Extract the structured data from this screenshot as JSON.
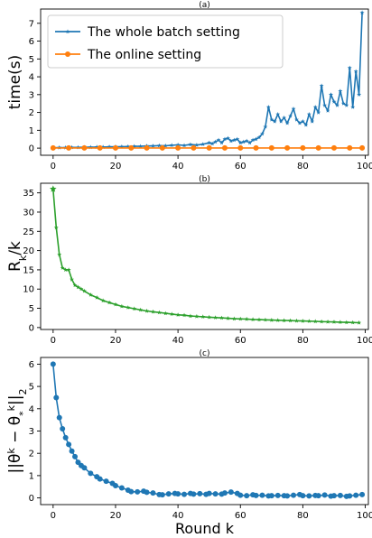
{
  "colors": {
    "blue": "#1f77b4",
    "orange": "#ff7f0e",
    "green": "#2ca02c"
  },
  "chart_data": [
    {
      "type": "line",
      "title": "(a)",
      "xlabel": "",
      "ylabel": "time(s)",
      "xlim": [
        -4,
        101
      ],
      "ylim": [
        -0.4,
        7.8
      ],
      "xticks": [
        0,
        20,
        40,
        60,
        80,
        100
      ],
      "yticks": [
        0,
        1,
        2,
        3,
        4,
        5,
        6,
        7
      ],
      "legend": "top-left",
      "series": [
        {
          "name": "The whole batch setting",
          "color": "#1f77b4",
          "marker": "star",
          "x": [
            0,
            2,
            4,
            6,
            8,
            10,
            12,
            14,
            16,
            18,
            20,
            22,
            24,
            26,
            28,
            30,
            32,
            34,
            36,
            38,
            40,
            42,
            44,
            46,
            48,
            50,
            51,
            52,
            53,
            54,
            55,
            56,
            57,
            58,
            59,
            60,
            61,
            62,
            63,
            64,
            65,
            66,
            67,
            68,
            69,
            70,
            71,
            72,
            73,
            74,
            75,
            76,
            77,
            78,
            79,
            80,
            81,
            82,
            83,
            84,
            85,
            86,
            87,
            88,
            89,
            90,
            91,
            92,
            93,
            94,
            95,
            96,
            97,
            98,
            99
          ],
          "y": [
            0.02,
            0.03,
            0.03,
            0.04,
            0.04,
            0.05,
            0.05,
            0.06,
            0.06,
            0.07,
            0.08,
            0.08,
            0.09,
            0.1,
            0.1,
            0.12,
            0.12,
            0.14,
            0.13,
            0.16,
            0.18,
            0.15,
            0.2,
            0.17,
            0.22,
            0.3,
            0.25,
            0.35,
            0.45,
            0.3,
            0.5,
            0.55,
            0.4,
            0.45,
            0.5,
            0.3,
            0.35,
            0.4,
            0.3,
            0.45,
            0.5,
            0.6,
            0.8,
            1.2,
            2.3,
            1.6,
            1.5,
            1.9,
            1.5,
            1.7,
            1.4,
            1.8,
            2.2,
            1.6,
            1.4,
            1.5,
            1.3,
            1.9,
            1.5,
            2.3,
            2.0,
            3.5,
            2.4,
            2.1,
            3.0,
            2.6,
            2.4,
            3.2,
            2.5,
            2.4,
            4.5,
            2.3,
            4.3,
            3.0,
            7.6
          ]
        },
        {
          "name": "The online setting",
          "color": "#ff7f0e",
          "marker": "circle",
          "x": [
            0,
            5,
            10,
            15,
            20,
            25,
            30,
            35,
            40,
            45,
            50,
            55,
            60,
            65,
            70,
            75,
            80,
            85,
            90,
            95,
            99
          ],
          "y": [
            0.01,
            0.01,
            0.01,
            0.01,
            0.01,
            0.01,
            0.01,
            0.01,
            0.01,
            0.01,
            0.01,
            0.01,
            0.01,
            0.01,
            0.01,
            0.01,
            0.01,
            0.01,
            0.01,
            0.01,
            0.01
          ]
        }
      ]
    },
    {
      "type": "line",
      "title": "(b)",
      "xlabel": "",
      "ylabel": "R_k/k",
      "xlim": [
        -4,
        101
      ],
      "ylim": [
        -0.5,
        37.5
      ],
      "xticks": [
        0,
        20,
        40,
        60,
        80,
        100
      ],
      "yticks": [
        0,
        5,
        10,
        15,
        20,
        25,
        30,
        35
      ],
      "series": [
        {
          "color": "#2ca02c",
          "marker": "star",
          "x": [
            0,
            1,
            2,
            3,
            4,
            5,
            6,
            7,
            8,
            9,
            10,
            12,
            14,
            16,
            18,
            20,
            22,
            24,
            26,
            28,
            30,
            32,
            34,
            36,
            38,
            40,
            42,
            44,
            46,
            48,
            50,
            52,
            54,
            56,
            58,
            60,
            62,
            64,
            66,
            68,
            70,
            72,
            74,
            76,
            78,
            80,
            82,
            84,
            86,
            88,
            90,
            92,
            94,
            96,
            98
          ],
          "y": [
            36,
            26,
            19,
            15.5,
            15,
            15,
            12.5,
            11,
            10.5,
            10,
            9.5,
            8.5,
            7.8,
            7,
            6.5,
            6,
            5.5,
            5.2,
            4.9,
            4.6,
            4.3,
            4.1,
            3.9,
            3.7,
            3.5,
            3.3,
            3.2,
            3.0,
            2.9,
            2.8,
            2.7,
            2.6,
            2.5,
            2.4,
            2.3,
            2.25,
            2.2,
            2.1,
            2.05,
            2.0,
            1.95,
            1.9,
            1.85,
            1.8,
            1.75,
            1.7,
            1.65,
            1.6,
            1.55,
            1.5,
            1.45,
            1.4,
            1.35,
            1.3,
            1.25
          ]
        }
      ]
    },
    {
      "type": "line",
      "title": "(c)",
      "xlabel": "Round k",
      "ylabel": "||θ^k − θ_*^k||_2",
      "xlim": [
        -4,
        101
      ],
      "ylim": [
        -0.3,
        6.3
      ],
      "xticks": [
        0,
        20,
        40,
        60,
        80,
        100
      ],
      "yticks": [
        0,
        1,
        2,
        3,
        4,
        5,
        6
      ],
      "series": [
        {
          "color": "#1f77b4",
          "marker": "circle",
          "x": [
            0,
            1,
            2,
            3,
            4,
            5,
            6,
            7,
            8,
            9,
            10,
            12,
            14,
            15,
            17,
            19,
            20,
            22,
            24,
            25,
            27,
            29,
            30,
            32,
            34,
            35,
            37,
            39,
            40,
            42,
            44,
            45,
            47,
            49,
            50,
            52,
            54,
            55,
            57,
            59,
            60,
            62,
            64,
            65,
            67,
            69,
            70,
            72,
            74,
            75,
            77,
            79,
            80,
            82,
            84,
            85,
            87,
            89,
            90,
            92,
            94,
            95,
            97,
            99
          ],
          "y": [
            6.0,
            4.5,
            3.6,
            3.1,
            2.7,
            2.4,
            2.1,
            1.85,
            1.6,
            1.45,
            1.35,
            1.1,
            0.95,
            0.85,
            0.75,
            0.65,
            0.55,
            0.45,
            0.35,
            0.28,
            0.27,
            0.3,
            0.25,
            0.22,
            0.15,
            0.14,
            0.18,
            0.2,
            0.18,
            0.16,
            0.2,
            0.17,
            0.19,
            0.16,
            0.2,
            0.18,
            0.17,
            0.22,
            0.26,
            0.2,
            0.12,
            0.1,
            0.14,
            0.11,
            0.12,
            0.09,
            0.1,
            0.11,
            0.1,
            0.09,
            0.12,
            0.15,
            0.1,
            0.09,
            0.11,
            0.1,
            0.13,
            0.08,
            0.1,
            0.11,
            0.07,
            0.09,
            0.12,
            0.15
          ]
        }
      ]
    }
  ]
}
